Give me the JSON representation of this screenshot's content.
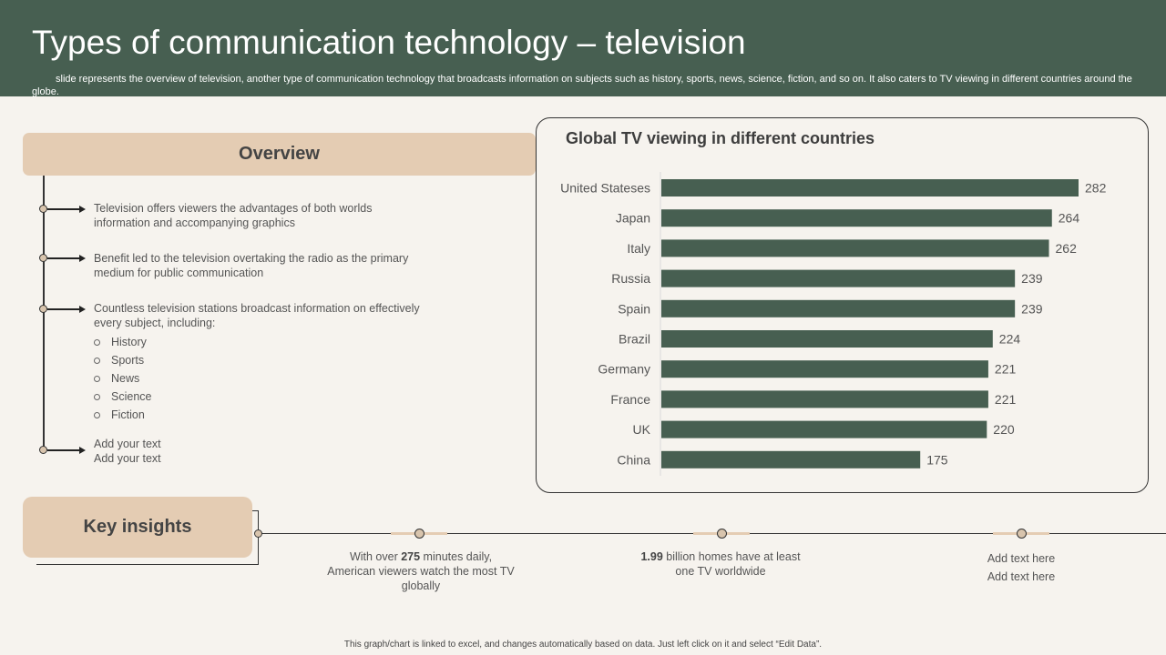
{
  "header": {
    "title": "Types of communication technology – television",
    "subtitle": "slide represents the overview of television, another type of communication technology that broadcasts information on subjects such as history, sports, news, science, fiction, and so on. It also caters to TV viewing in different countries around the globe."
  },
  "overview": {
    "heading": "Overview",
    "bullets": [
      "Television offers viewers the advantages of both worlds information and accompanying graphics",
      "Benefit led to the television overtaking the radio as the primary medium for public communication",
      "Countless television stations broadcast information on effectively every subject, including:",
      "Add your text\nAdd your text"
    ],
    "subjects": [
      "History",
      "Sports",
      "News",
      "Science",
      "Fiction"
    ]
  },
  "chart_panel": {
    "title": "Global TV viewing in different countries"
  },
  "chart_data": {
    "type": "bar",
    "orientation": "horizontal",
    "title": "Global TV viewing in different countries",
    "categories": [
      "United Stateses",
      "Japan",
      "Italy",
      "Russia",
      "Spain",
      "Brazil",
      "Germany",
      "France",
      "UK",
      "China"
    ],
    "values": [
      282,
      264,
      262,
      239,
      239,
      224,
      221,
      221,
      220,
      175
    ],
    "xlim": [
      0,
      282
    ],
    "bar_color": "#475f51",
    "data_labels": true,
    "grid": false
  },
  "insights": {
    "heading": "Key insights",
    "items": [
      {
        "bold": "275",
        "pre": "With over ",
        "post": " minutes daily, American viewers  watch the most TV globally"
      },
      {
        "bold": "1.99",
        "pre": "",
        "post": " billion homes have  at least one TV worldwide"
      },
      {
        "bold": "",
        "pre": "Add text here",
        "post": "Add text here"
      }
    ]
  },
  "footer": {
    "note": "This graph/chart is linked to excel, and changes automatically based on data. Just left click on it and select “Edit Data”."
  },
  "colors": {
    "header_bg": "#475f51",
    "accent_beige": "#e4ccb3",
    "page_bg": "#f6f3ee"
  }
}
